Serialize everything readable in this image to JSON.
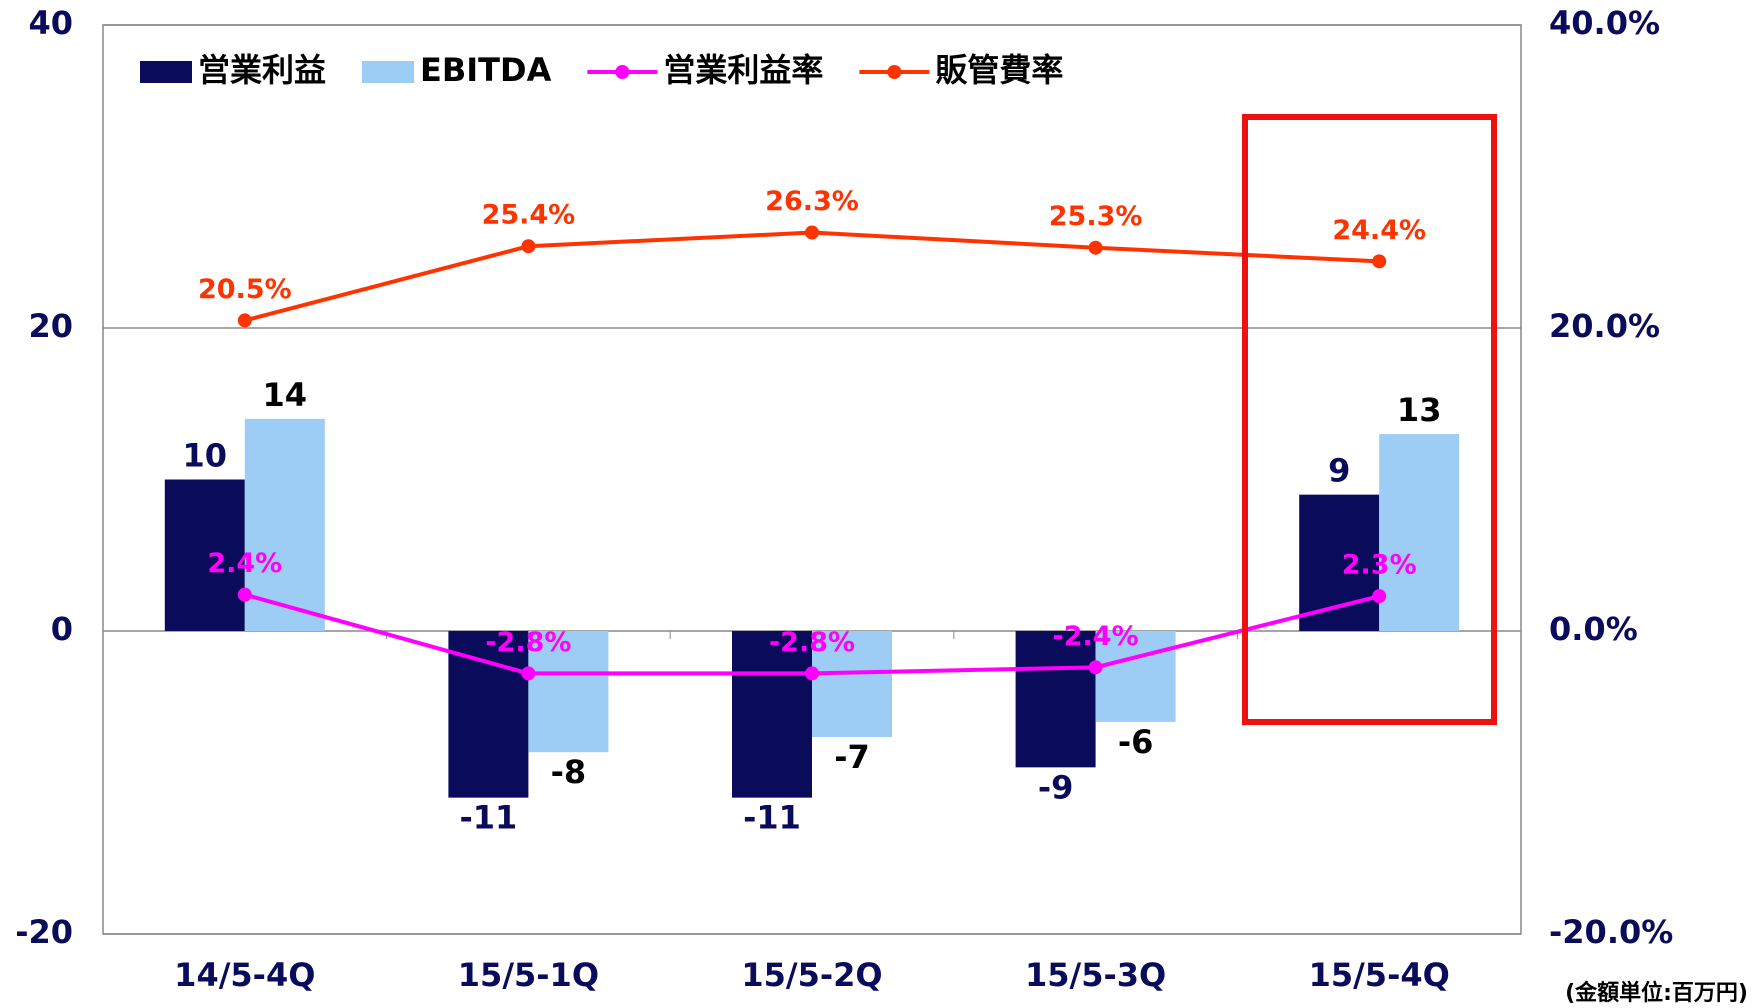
{
  "chart_data": {
    "type": "bar",
    "categories": [
      "14/5-4Q",
      "15/5-1Q",
      "15/5-2Q",
      "15/5-3Q",
      "15/5-4Q"
    ],
    "series": [
      {
        "name": "営業利益",
        "type": "bar",
        "color": "#0b0b5c",
        "values": [
          10,
          -11,
          -11,
          -9,
          9
        ]
      },
      {
        "name": "EBITDA",
        "type": "bar",
        "color": "#9dcdf5",
        "values": [
          14,
          -8,
          -7,
          -6,
          13
        ]
      },
      {
        "name": "営業利益率",
        "type": "line",
        "axis": "y2",
        "color": "#ff00ff",
        "values": [
          2.4,
          -2.8,
          -2.8,
          -2.4,
          2.3
        ],
        "value_labels": [
          "2.4%",
          "-2.8%",
          "-2.8%",
          "-2.4%",
          "2.3%"
        ]
      },
      {
        "name": "販管費率",
        "type": "line",
        "axis": "y2",
        "color": "#ff3300",
        "values": [
          20.5,
          25.4,
          26.3,
          25.3,
          24.4
        ],
        "value_labels": [
          "20.5%",
          "25.4%",
          "26.3%",
          "25.3%",
          "24.4%"
        ]
      }
    ],
    "ylim": [
      -20,
      40
    ],
    "yticks": [
      -20,
      0,
      20,
      40
    ],
    "y2lim": [
      -20,
      40
    ],
    "y2ticks": [
      {
        "value": -20,
        "label": "-20.0%"
      },
      {
        "value": 0,
        "label": "0.0%"
      },
      {
        "value": 20,
        "label": "20.0%"
      },
      {
        "value": 40,
        "label": "40.0%"
      }
    ],
    "grid": true,
    "legend": "top-left",
    "annotation": "(金額単位:百万円)"
  }
}
